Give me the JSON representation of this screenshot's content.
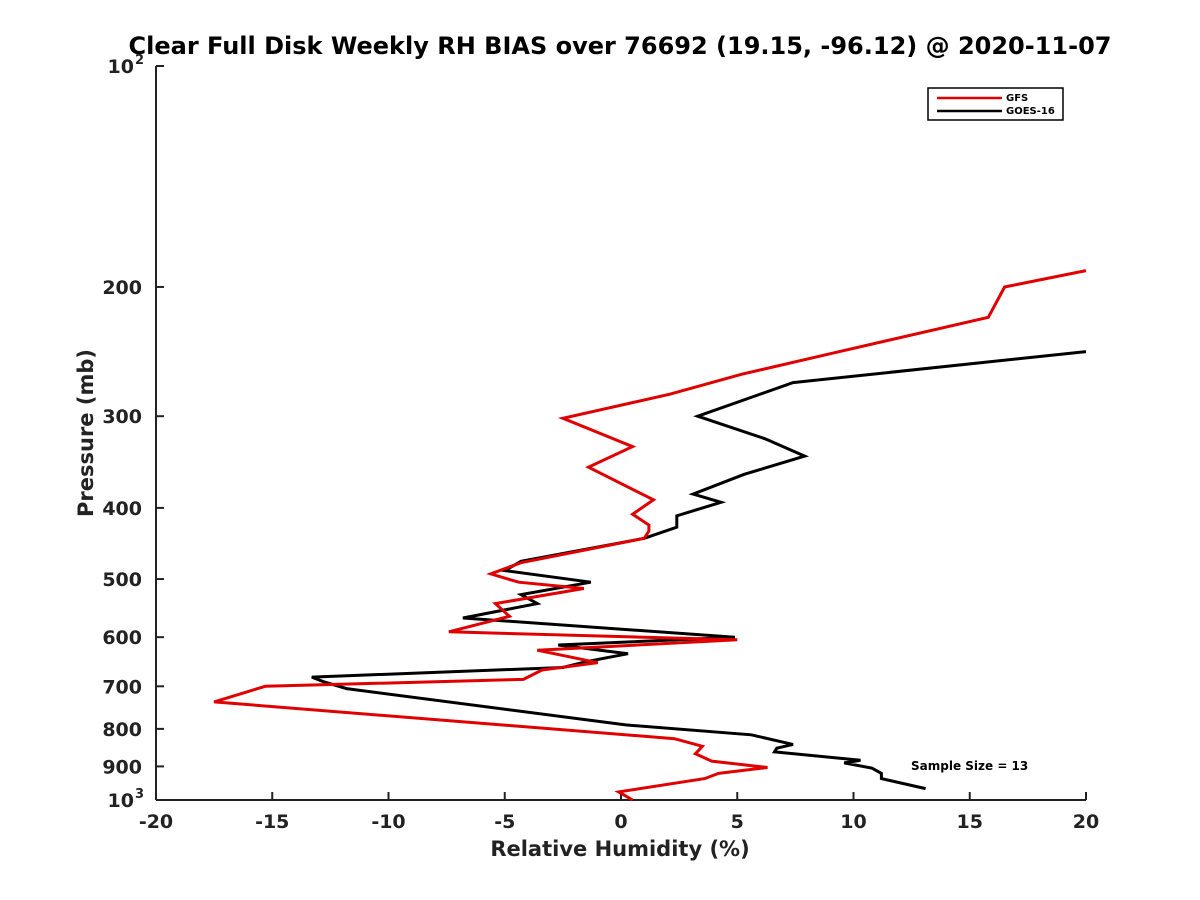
{
  "chart_data": {
    "type": "line",
    "title": "Clear Full Disk Weekly RH BIAS over 76692 (19.15, -96.12) @ 2020-11-07",
    "xlabel": "Relative Humidity (%)",
    "ylabel": "Pressure (mb)",
    "xlim": [
      -20,
      20
    ],
    "ylim": [
      1000,
      100
    ],
    "yscale": "log",
    "x_ticks": [
      "-20",
      "-15",
      "-10",
      "-5",
      "0",
      "5",
      "10",
      "15",
      "20"
    ],
    "y_ticks": [
      {
        "value": 100,
        "label": "10",
        "sup": "2"
      },
      {
        "value": 200,
        "label": "200"
      },
      {
        "value": 300,
        "label": "300"
      },
      {
        "value": 400,
        "label": "400"
      },
      {
        "value": 500,
        "label": "500"
      },
      {
        "value": 600,
        "label": "600"
      },
      {
        "value": 700,
        "label": "700"
      },
      {
        "value": 800,
        "label": "800"
      },
      {
        "value": 900,
        "label": "900"
      },
      {
        "value": 1000,
        "label": "10",
        "sup": "3"
      }
    ],
    "grid": false,
    "legend_position": "top-right",
    "series": [
      {
        "name": "GFS",
        "color": "#e00000",
        "points": [
          [
            20.0,
            190
          ],
          [
            16.5,
            200
          ],
          [
            15.8,
            220
          ],
          [
            9.4,
            245
          ],
          [
            5.2,
            263
          ],
          [
            2.1,
            280
          ],
          [
            -2.5,
            302
          ],
          [
            0.5,
            330
          ],
          [
            -1.4,
            352
          ],
          [
            1.4,
            390
          ],
          [
            0.5,
            408
          ],
          [
            1.2,
            422
          ],
          [
            1.2,
            430
          ],
          [
            1.0,
            440
          ],
          [
            -4.3,
            475
          ],
          [
            -5.6,
            492
          ],
          [
            -4.4,
            505
          ],
          [
            -1.6,
            515
          ],
          [
            -5.4,
            540
          ],
          [
            -4.8,
            562
          ],
          [
            -7.4,
            590
          ],
          [
            5.0,
            605
          ],
          [
            -3.6,
            625
          ],
          [
            -1.0,
            650
          ],
          [
            -3.4,
            665
          ],
          [
            -4.2,
            685
          ],
          [
            -15.3,
            700
          ],
          [
            -17.5,
            735
          ],
          [
            2.3,
            825
          ],
          [
            3.5,
            845
          ],
          [
            3.2,
            865
          ],
          [
            3.9,
            885
          ],
          [
            6.3,
            903
          ],
          [
            4.2,
            920
          ],
          [
            3.6,
            935
          ],
          [
            -0.1,
            975
          ],
          [
            0.5,
            1000
          ]
        ]
      },
      {
        "name": "GOES-16",
        "color": "#000000",
        "points": [
          [
            20.0,
            245
          ],
          [
            7.4,
            270
          ],
          [
            3.3,
            300
          ],
          [
            6.2,
            322
          ],
          [
            7.9,
            340
          ],
          [
            5.3,
            360
          ],
          [
            3.1,
            383
          ],
          [
            4.3,
            393
          ],
          [
            2.4,
            410
          ],
          [
            2.4,
            425
          ],
          [
            1.0,
            440
          ],
          [
            -4.3,
            473
          ],
          [
            -5.0,
            487
          ],
          [
            -1.3,
            505
          ],
          [
            -4.3,
            525
          ],
          [
            -3.6,
            540
          ],
          [
            -6.8,
            565
          ],
          [
            4.9,
            600
          ],
          [
            -2.7,
            615
          ],
          [
            0.3,
            632
          ],
          [
            -1.5,
            648
          ],
          [
            -2.5,
            660
          ],
          [
            -13.3,
            680
          ],
          [
            -12.8,
            690
          ],
          [
            -11.8,
            705
          ],
          [
            0.2,
            790
          ],
          [
            5.6,
            815
          ],
          [
            7.4,
            840
          ],
          [
            6.7,
            850
          ],
          [
            6.6,
            860
          ],
          [
            10.3,
            883
          ],
          [
            9.6,
            890
          ],
          [
            10.8,
            905
          ],
          [
            11.2,
            920
          ],
          [
            11.2,
            935
          ],
          [
            13.1,
            965
          ]
        ]
      }
    ],
    "annotation": "Sample Size = 13"
  }
}
